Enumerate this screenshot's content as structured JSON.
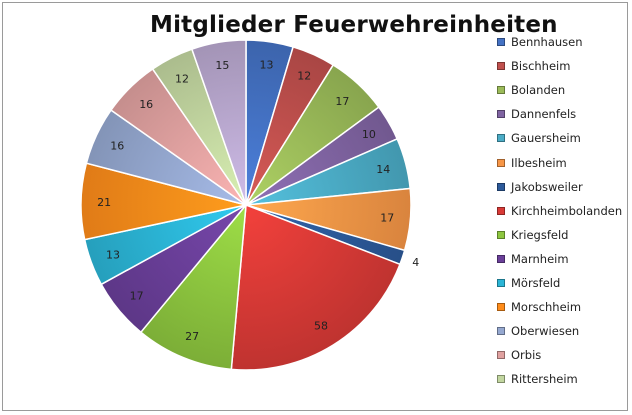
{
  "chart_data": {
    "type": "pie",
    "title": "Mitglieder Feuerwehreinheiten",
    "legend_position": "right",
    "slices": [
      {
        "label": "Bennhausen",
        "value": 13,
        "color": "#4472C4"
      },
      {
        "label": "Bischheim",
        "value": 12,
        "color": "#C0504D"
      },
      {
        "label": "Bolanden",
        "value": 17,
        "color": "#9BBB59"
      },
      {
        "label": "Dannenfels",
        "value": 10,
        "color": "#8064A2"
      },
      {
        "label": "Gauersheim",
        "value": 14,
        "color": "#4BACC6"
      },
      {
        "label": "Ilbesheim",
        "value": 17,
        "color": "#F79646"
      },
      {
        "label": "Jakobsweiler",
        "value": 4,
        "color": "#2C5A9A"
      },
      {
        "label": "Kirchheimbolanden",
        "value": 58,
        "color": "#D93A36"
      },
      {
        "label": "Kriegsfeld",
        "value": 27,
        "color": "#8DC63F"
      },
      {
        "label": "Marnheim",
        "value": 17,
        "color": "#6A3F99"
      },
      {
        "label": "Mörsfeld",
        "value": 13,
        "color": "#2BB5D6"
      },
      {
        "label": "Morschheim",
        "value": 21,
        "color": "#FF8C1A"
      },
      {
        "label": "Oberwiesen",
        "value": 16,
        "color": "#95A8D0"
      },
      {
        "label": "Orbis",
        "value": 16,
        "color": "#E0A1A0"
      },
      {
        "label": "Rittersheim",
        "value": 12,
        "color": "#C2D6A0"
      },
      {
        "label": "",
        "value": 15,
        "color": "#B9A8CF"
      }
    ]
  }
}
